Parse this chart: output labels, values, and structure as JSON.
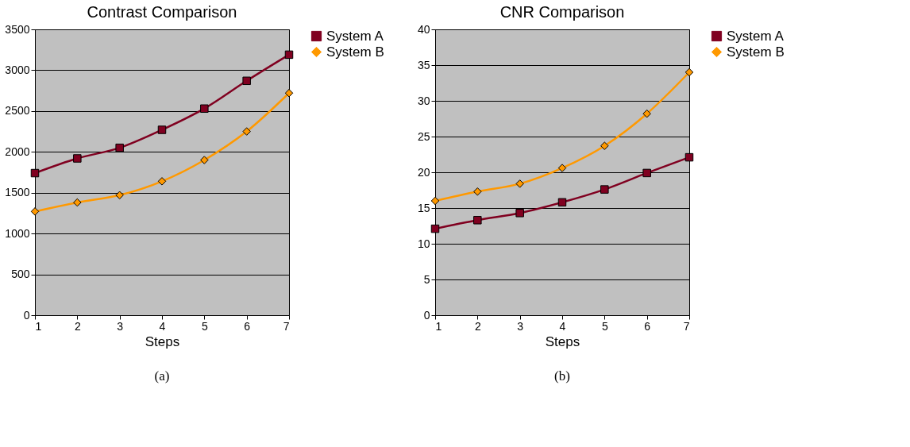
{
  "chart_data": [
    {
      "type": "line",
      "title": "Contrast Comparison",
      "xlabel": "Steps",
      "x": [
        1,
        2,
        3,
        4,
        5,
        6,
        7
      ],
      "xlim": [
        1,
        7
      ],
      "xticks": [
        1,
        2,
        3,
        4,
        5,
        6,
        7
      ],
      "ylim": [
        0,
        3500
      ],
      "yticks": [
        0,
        500,
        1000,
        1500,
        2000,
        2500,
        3000,
        3500
      ],
      "grid": "y",
      "legend": "right",
      "annotations": [
        "(a)"
      ],
      "series": [
        {
          "name": "System A",
          "color": "#800020",
          "marker": "square",
          "values": [
            1740,
            1920,
            2050,
            2270,
            2530,
            2870,
            3190
          ]
        },
        {
          "name": "System B",
          "color": "#ff9900",
          "marker": "diamond",
          "values": [
            1270,
            1380,
            1470,
            1640,
            1900,
            2250,
            2720
          ]
        }
      ]
    },
    {
      "type": "line",
      "title": "CNR Comparison",
      "xlabel": "Steps",
      "x": [
        1,
        2,
        3,
        4,
        5,
        6,
        7
      ],
      "xlim": [
        1,
        7
      ],
      "xticks": [
        1,
        2,
        3,
        4,
        5,
        6,
        7
      ],
      "ylim": [
        0,
        40
      ],
      "yticks": [
        0,
        5,
        10,
        15,
        20,
        25,
        30,
        35,
        40
      ],
      "grid": "y",
      "legend": "right",
      "annotations": [
        "(b)"
      ],
      "series": [
        {
          "name": "System A",
          "color": "#800020",
          "marker": "square",
          "values": [
            12.1,
            13.3,
            14.3,
            15.8,
            17.6,
            19.9,
            22.1
          ]
        },
        {
          "name": "System B",
          "color": "#ff9900",
          "marker": "diamond",
          "values": [
            16.0,
            17.3,
            18.4,
            20.6,
            23.7,
            28.2,
            34.0
          ]
        }
      ]
    }
  ]
}
